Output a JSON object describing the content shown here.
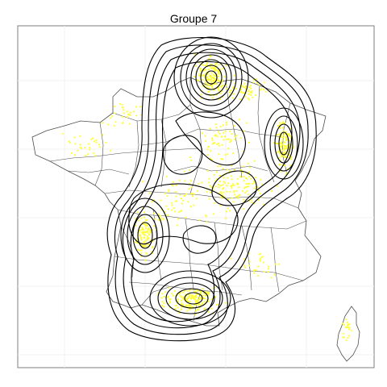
{
  "title": "Groupe 7",
  "colors": {
    "background": "#ffffff",
    "panel_border": "#7f7f7f",
    "grid": "#f0f0f0",
    "borders": "#4d4d4d",
    "points": "#ffff33",
    "contours": "#000000"
  }
}
